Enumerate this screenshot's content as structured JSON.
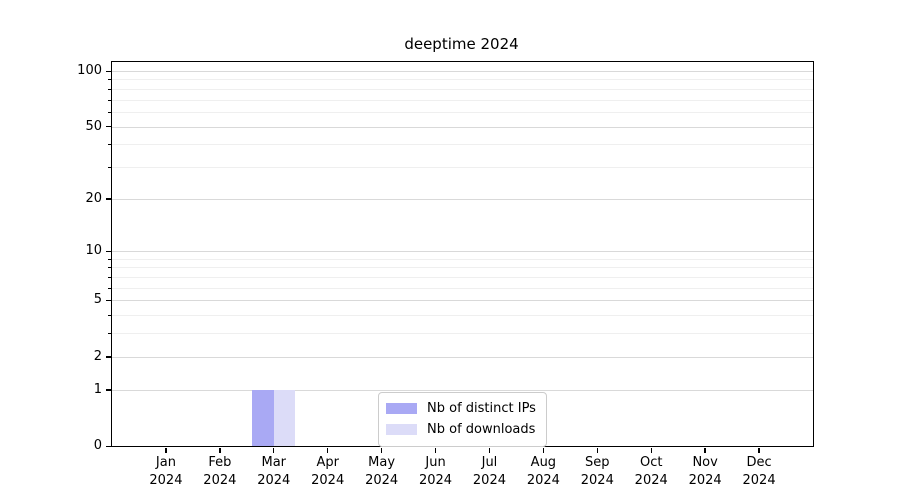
{
  "figure": {
    "title": "deeptime 2024",
    "background_color": "#ffffff",
    "text_color": "#000000"
  },
  "chart_data": {
    "type": "bar",
    "title": "deeptime 2024",
    "categories": [
      "Jan 2024",
      "Feb 2024",
      "Mar 2024",
      "Apr 2024",
      "May 2024",
      "Jun 2024",
      "Jul 2024",
      "Aug 2024",
      "Sep 2024",
      "Oct 2024",
      "Nov 2024",
      "Dec 2024"
    ],
    "series": [
      {
        "name": "Nb of distinct IPs",
        "color": "#a9a9f4",
        "values": [
          0,
          0,
          1,
          0,
          0,
          0,
          0,
          0,
          0,
          0,
          0,
          0
        ]
      },
      {
        "name": "Nb of downloads",
        "color": "#dcdcf8",
        "values": [
          0,
          0,
          1,
          0,
          0,
          0,
          0,
          0,
          0,
          0,
          0,
          0
        ]
      }
    ],
    "xlabel": "",
    "ylabel": "",
    "yscale": "log1p",
    "ylim": [
      0,
      111
    ],
    "yticks": [
      0,
      1,
      2,
      5,
      10,
      20,
      50,
      100
    ],
    "yticks_minor": [
      3,
      4,
      6,
      7,
      8,
      9,
      30,
      40,
      60,
      70,
      80,
      90
    ],
    "grid": "horizontal",
    "legend": {
      "location": "lower-center-inside",
      "entries": [
        "Nb of distinct IPs",
        "Nb of downloads"
      ]
    }
  }
}
